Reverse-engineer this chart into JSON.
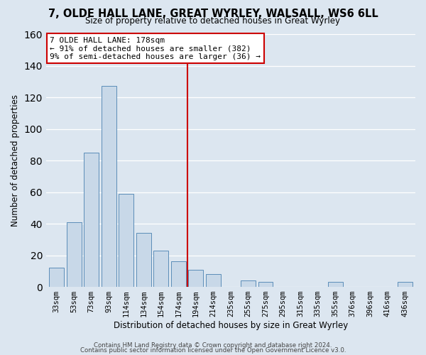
{
  "title": "7, OLDE HALL LANE, GREAT WYRLEY, WALSALL, WS6 6LL",
  "subtitle": "Size of property relative to detached houses in Great Wyrley",
  "xlabel": "Distribution of detached houses by size in Great Wyrley",
  "ylabel": "Number of detached properties",
  "bar_labels": [
    "33sqm",
    "53sqm",
    "73sqm",
    "93sqm",
    "114sqm",
    "134sqm",
    "154sqm",
    "174sqm",
    "194sqm",
    "214sqm",
    "235sqm",
    "255sqm",
    "275sqm",
    "295sqm",
    "315sqm",
    "335sqm",
    "355sqm",
    "376sqm",
    "396sqm",
    "416sqm",
    "436sqm"
  ],
  "bar_values": [
    12,
    41,
    85,
    127,
    59,
    34,
    23,
    16,
    11,
    8,
    0,
    4,
    3,
    0,
    0,
    0,
    3,
    0,
    0,
    0,
    3
  ],
  "bar_color": "#c8d8e8",
  "bar_edge_color": "#5b8db8",
  "vline_color": "#cc0000",
  "vline_x": 7.5,
  "annotation_text": "7 OLDE HALL LANE: 178sqm\n← 91% of detached houses are smaller (382)\n9% of semi-detached houses are larger (36) →",
  "annotation_box_color": "#ffffff",
  "annotation_box_edge_color": "#cc0000",
  "ylim": [
    0,
    160
  ],
  "yticks": [
    0,
    20,
    40,
    60,
    80,
    100,
    120,
    140,
    160
  ],
  "footer1": "Contains HM Land Registry data © Crown copyright and database right 2024.",
  "footer2": "Contains public sector information licensed under the Open Government Licence v3.0.",
  "background_color": "#dce6f0",
  "plot_background": "#dce6f0"
}
